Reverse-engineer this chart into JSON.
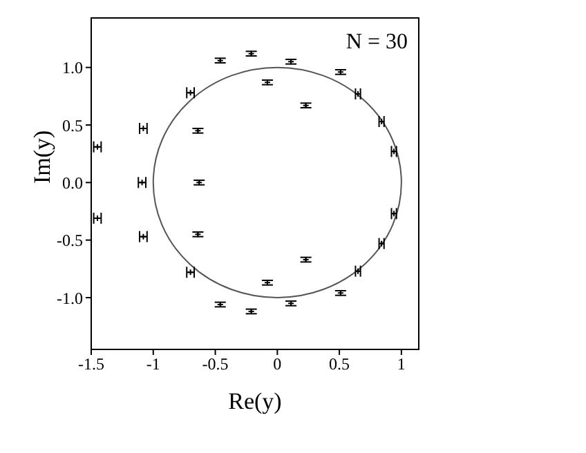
{
  "chart_data": {
    "type": "scatter",
    "xlabel": "Re(y)",
    "ylabel": "Im(y)",
    "annotations": [
      "N = 30"
    ],
    "xlim": [
      -1.5,
      1.14
    ],
    "ylim": [
      -1.45,
      1.43
    ],
    "xticks": [
      -1.5,
      -1,
      -0.5,
      0,
      0.5,
      1
    ],
    "yticks": [
      {
        "value": -1,
        "label": "-1.0"
      },
      {
        "value": -0.5,
        "label": "-0.5"
      },
      {
        "value": 0,
        "label": "0.0"
      },
      {
        "value": 0.5,
        "label": "0.5"
      },
      {
        "value": 1,
        "label": "1.0"
      }
    ],
    "grid": false,
    "marker": "cross",
    "series": [
      {
        "color": "#000000",
        "x": [
          -1.45,
          -1.08,
          -1.09,
          -0.7,
          -0.64,
          -0.63,
          -0.46,
          -0.21,
          -0.08,
          0.11,
          0.23,
          0.51,
          0.65,
          0.84,
          0.94,
          -1.45,
          -1.08,
          -0.7,
          -0.64,
          -0.46,
          -0.21,
          -0.08,
          0.11,
          0.23,
          0.51,
          0.65,
          0.84,
          0.94
        ],
        "values": [
          0.31,
          0.47,
          0,
          0.78,
          0.45,
          0,
          1.06,
          1.12,
          0.87,
          1.05,
          0.67,
          0.96,
          0.77,
          0.53,
          0.27,
          -0.31,
          -0.47,
          -0.78,
          -0.45,
          -1.06,
          -1.12,
          -0.87,
          -1.05,
          -0.67,
          -0.96,
          -0.77,
          -0.53,
          -0.27
        ],
        "xerrors": [
          0.03,
          0.03,
          0.03,
          0.03,
          null,
          null,
          null,
          null,
          null,
          null,
          null,
          null,
          0.02,
          0.02,
          0.02,
          0.03,
          0.03,
          0.03,
          null,
          null,
          null,
          null,
          null,
          null,
          null,
          0.02,
          0.02,
          0.02
        ],
        "errors": [
          null,
          null,
          null,
          null,
          0.02,
          0.02,
          0.02,
          0.02,
          0.02,
          0.02,
          0.02,
          0.02,
          null,
          null,
          null,
          null,
          null,
          null,
          0.02,
          0.02,
          0.02,
          0.02,
          0.02,
          0.02,
          0.02,
          null,
          null,
          null
        ]
      }
    ]
  }
}
